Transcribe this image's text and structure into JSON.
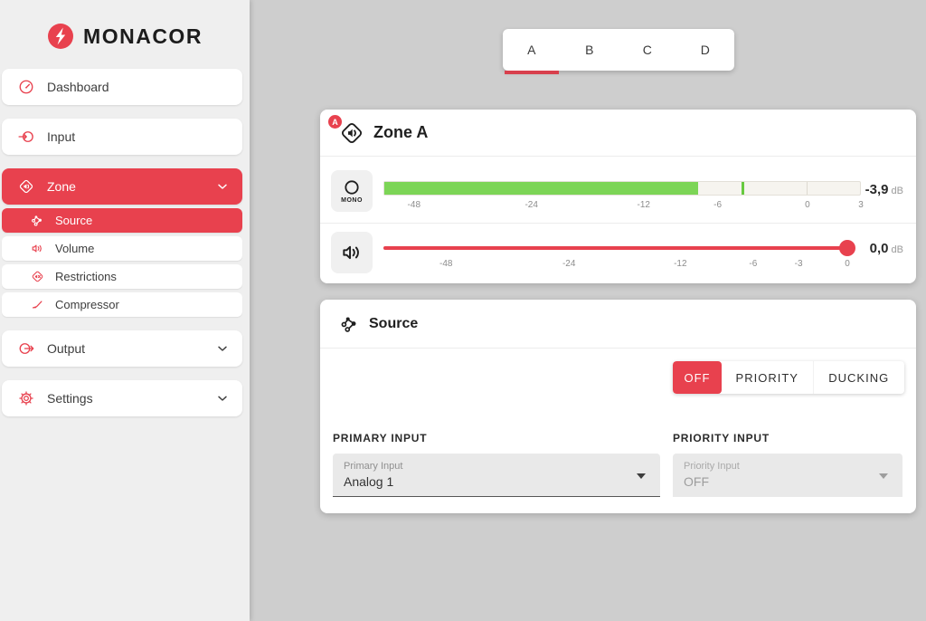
{
  "brand": {
    "name": "MONACOR"
  },
  "colors": {
    "accent": "#e8414e",
    "meter_green": "#7cd556",
    "background": "#cecece"
  },
  "sidebar": {
    "items": [
      {
        "label": "Dashboard"
      },
      {
        "label": "Input"
      },
      {
        "label": "Zone",
        "active": true,
        "expanded": true
      },
      {
        "label": "Output"
      },
      {
        "label": "Settings"
      }
    ],
    "zone_subitems": [
      {
        "label": "Source",
        "active": true
      },
      {
        "label": "Volume"
      },
      {
        "label": "Restrictions"
      },
      {
        "label": "Compressor"
      }
    ]
  },
  "tabs": {
    "items": [
      {
        "label": "A",
        "active": true
      },
      {
        "label": "B"
      },
      {
        "label": "C"
      },
      {
        "label": "D"
      }
    ]
  },
  "zone_panel": {
    "badge": "A",
    "title": "Zone A",
    "mono_label": "MONO",
    "meter": {
      "ticks": [
        "-48",
        "-24",
        "-12",
        "-6",
        "0",
        "3"
      ],
      "fill_pct": 66,
      "peak_pct": 75,
      "value": "-3,9",
      "unit": "dB"
    },
    "volume": {
      "ticks": [
        "-48",
        "-24",
        "-12",
        "-6",
        "-3",
        "0"
      ],
      "thumb_pct": 100,
      "value": "0,0",
      "unit": "dB"
    }
  },
  "source_panel": {
    "title": "Source",
    "modes": [
      {
        "label": "OFF",
        "active": true
      },
      {
        "label": "PRIORITY"
      },
      {
        "label": "DUCKING"
      }
    ],
    "primary_input": {
      "section_label": "PRIMARY INPUT",
      "field_label": "Primary Input",
      "value": "Analog 1"
    },
    "priority_input": {
      "section_label": "PRIORITY INPUT",
      "field_label": "Priority Input",
      "value": "OFF",
      "disabled": true
    }
  }
}
